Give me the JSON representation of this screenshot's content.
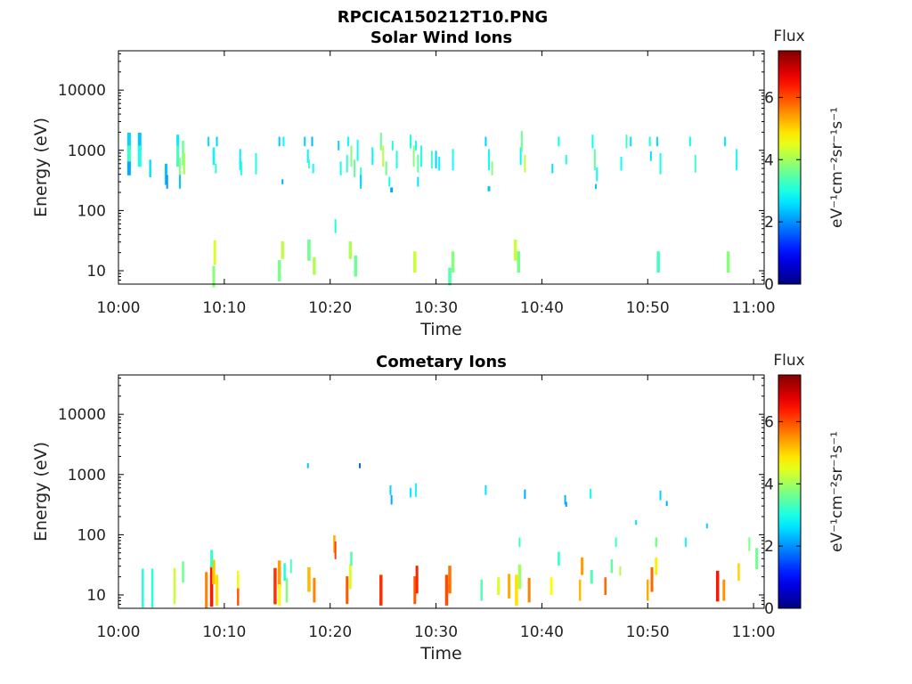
{
  "figure_title": "RPCICA150212T10.PNG",
  "chart_data": [
    {
      "type": "heatmap",
      "title": "Solar Wind Ions",
      "xlabel": "Time",
      "ylabel": "Energy (eV)",
      "x_ticks": [
        "10:00",
        "10:10",
        "10:20",
        "10:30",
        "10:40",
        "10:50",
        "11:00"
      ],
      "xlim_minutes": [
        0,
        61
      ],
      "y_scale": "log",
      "ylim": [
        6,
        45000
      ],
      "y_ticks": [
        "10",
        "100",
        "1000",
        "10000"
      ],
      "colorbar": {
        "title": "Flux",
        "label": "eV⁻¹cm⁻²sr⁻¹s⁻¹",
        "ticks": [
          "0",
          "2",
          "4",
          "6"
        ],
        "range": [
          0,
          7.5
        ],
        "colormap": "jet"
      },
      "cells": [
        [
          1.0,
          1400,
          4.0,
          2.5,
          1.4
        ],
        [
          1.0,
          800,
          4.0,
          3.2,
          1.5
        ],
        [
          1.0,
          500,
          4.0,
          2.2,
          1.3
        ],
        [
          2.0,
          1400,
          4.0,
          2.4,
          1.4
        ],
        [
          2.0,
          800,
          4.0,
          3.0,
          1.5
        ],
        [
          3.0,
          500,
          2.4,
          2.6,
          1.4
        ],
        [
          4.5,
          400,
          3.0,
          2.4,
          1.5
        ],
        [
          4.6,
          300,
          2.0,
          2.0,
          1.3
        ],
        [
          5.6,
          1400,
          3.0,
          2.7,
          1.3
        ],
        [
          5.6,
          800,
          3.0,
          3.3,
          1.5
        ],
        [
          5.8,
          500,
          2.0,
          3.8,
          1.5
        ],
        [
          5.8,
          300,
          2.0,
          2.4,
          1.3
        ],
        [
          6.1,
          900,
          2.5,
          3.6,
          1.6
        ],
        [
          6.2,
          600,
          2.5,
          4.0,
          1.5
        ],
        [
          8.5,
          1400,
          2.0,
          2.6,
          1.2
        ],
        [
          9.0,
          800,
          2.5,
          2.8,
          1.4
        ],
        [
          9.2,
          500,
          2.0,
          3.1,
          1.2
        ],
        [
          9.3,
          1400,
          2.0,
          2.5,
          1.2
        ],
        [
          9.0,
          8,
          3.0,
          3.8,
          1.5
        ],
        [
          9.1,
          20,
          3.0,
          4.4,
          1.6
        ],
        [
          11.5,
          700,
          2.0,
          2.7,
          1.5
        ],
        [
          11.6,
          500,
          2.0,
          3.0,
          1.3
        ],
        [
          13.0,
          600,
          2.0,
          3.0,
          1.5
        ],
        [
          15.2,
          1400,
          2.0,
          2.4,
          1.2
        ],
        [
          15.6,
          1400,
          2.0,
          2.8,
          1.2
        ],
        [
          15.5,
          300,
          2.0,
          2.2,
          1.1
        ],
        [
          15.2,
          10,
          3.5,
          3.7,
          1.5
        ],
        [
          15.5,
          22,
          3.5,
          4.2,
          1.4
        ],
        [
          17.6,
          1400,
          2.0,
          2.5,
          1.2
        ],
        [
          17.9,
          800,
          2.0,
          2.8,
          1.3
        ],
        [
          18.0,
          600,
          2.0,
          3.3,
          1.2
        ],
        [
          18.3,
          1400,
          2.0,
          2.3,
          1.2
        ],
        [
          18.4,
          500,
          2.0,
          2.9,
          1.2
        ],
        [
          18.0,
          22,
          3.5,
          3.6,
          1.5
        ],
        [
          18.5,
          12,
          3.5,
          4.1,
          1.4
        ],
        [
          20.5,
          55,
          2.0,
          3.0,
          1.3
        ],
        [
          20.8,
          1200,
          2.0,
          2.5,
          1.2
        ],
        [
          21.0,
          500,
          2.0,
          2.9,
          1.3
        ],
        [
          21.6,
          600,
          2.0,
          3.2,
          1.4
        ],
        [
          21.7,
          1400,
          2.0,
          2.8,
          1.2
        ],
        [
          22.0,
          800,
          2.0,
          3.8,
          1.5
        ],
        [
          22.3,
          500,
          2.0,
          3.5,
          1.4
        ],
        [
          22.6,
          1000,
          2.0,
          3.0,
          1.5
        ],
        [
          22.9,
          400,
          2.0,
          3.3,
          1.3
        ],
        [
          22.9,
          300,
          2.0,
          2.5,
          1.3
        ],
        [
          21.9,
          22,
          3.5,
          4.1,
          1.4
        ],
        [
          22.4,
          12,
          3.5,
          3.6,
          1.5
        ],
        [
          24.0,
          800,
          2.0,
          2.8,
          1.4
        ],
        [
          24.8,
          1400,
          2.0,
          3.6,
          1.4
        ],
        [
          25.0,
          800,
          2.0,
          4.2,
          1.5
        ],
        [
          25.3,
          500,
          2.0,
          3.6,
          1.3
        ],
        [
          25.6,
          300,
          2.0,
          2.9,
          1.2
        ],
        [
          25.9,
          1200,
          2.0,
          3.0,
          1.2
        ],
        [
          25.8,
          220,
          3.0,
          2.2,
          1.1
        ],
        [
          26.3,
          700,
          2.0,
          3.0,
          1.4
        ],
        [
          27.6,
          1400,
          2.0,
          3.0,
          1.3
        ],
        [
          27.9,
          800,
          2.0,
          3.8,
          1.5
        ],
        [
          28.1,
          1200,
          2.0,
          2.9,
          1.2
        ],
        [
          28.3,
          600,
          2.0,
          3.5,
          1.4
        ],
        [
          28.6,
          800,
          2.0,
          3.0,
          1.5
        ],
        [
          28.3,
          300,
          2.0,
          2.6,
          1.2
        ],
        [
          28.0,
          14,
          3.5,
          4.3,
          1.5
        ],
        [
          29.6,
          700,
          2.0,
          3.2,
          1.4
        ],
        [
          30.0,
          700,
          2.0,
          2.5,
          1.4
        ],
        [
          30.3,
          600,
          2.0,
          2.8,
          1.3
        ],
        [
          31.6,
          700,
          2.0,
          2.9,
          1.5
        ],
        [
          31.6,
          14,
          3.5,
          3.8,
          1.5
        ],
        [
          31.3,
          8,
          3.5,
          3.4,
          1.4
        ],
        [
          34.7,
          1400,
          2.0,
          2.5,
          1.2
        ],
        [
          35.0,
          700,
          2.0,
          2.9,
          1.5
        ],
        [
          35.3,
          500,
          2.0,
          3.8,
          1.3
        ],
        [
          35.0,
          230,
          3.0,
          2.4,
          1.1
        ],
        [
          37.5,
          22,
          3.5,
          4.3,
          1.5
        ],
        [
          37.8,
          14,
          3.5,
          3.7,
          1.5
        ],
        [
          38.0,
          800,
          2.0,
          2.8,
          1.4
        ],
        [
          38.1,
          1400,
          2.0,
          3.6,
          1.5
        ],
        [
          38.4,
          600,
          2.0,
          4.2,
          1.4
        ],
        [
          41.0,
          500,
          2.0,
          2.6,
          1.2
        ],
        [
          41.6,
          1400,
          2.0,
          2.8,
          1.2
        ],
        [
          42.3,
          700,
          2.0,
          3.0,
          1.2
        ],
        [
          44.8,
          1400,
          2.0,
          2.9,
          1.3
        ],
        [
          45.0,
          700,
          2.0,
          3.5,
          1.5
        ],
        [
          45.2,
          400,
          2.0,
          2.9,
          1.3
        ],
        [
          45.1,
          250,
          2.0,
          2.4,
          1.1
        ],
        [
          47.5,
          600,
          2.0,
          2.9,
          1.3
        ],
        [
          48.0,
          1400,
          2.0,
          3.3,
          1.3
        ],
        [
          48.4,
          1400,
          2.0,
          2.6,
          1.2
        ],
        [
          50.2,
          1400,
          2.0,
          3.0,
          1.2
        ],
        [
          50.3,
          800,
          2.0,
          2.6,
          1.2
        ],
        [
          50.9,
          1400,
          2.0,
          2.6,
          1.2
        ],
        [
          51.2,
          600,
          2.0,
          3.0,
          1.5
        ],
        [
          51.0,
          14,
          3.5,
          3.3,
          1.5
        ],
        [
          54.0,
          1400,
          2.0,
          2.8,
          1.2
        ],
        [
          54.5,
          600,
          2.0,
          3.3,
          1.4
        ],
        [
          57.3,
          1400,
          2.0,
          2.7,
          1.2
        ],
        [
          57.6,
          14,
          3.5,
          3.8,
          1.5
        ],
        [
          58.4,
          700,
          2.0,
          2.9,
          1.5
        ]
      ]
    },
    {
      "type": "heatmap",
      "title": "Cometary Ions",
      "xlabel": "Time",
      "ylabel": "Energy (eV)",
      "x_ticks": [
        "10:00",
        "10:10",
        "10:20",
        "10:30",
        "10:40",
        "10:50",
        "11:00"
      ],
      "xlim_minutes": [
        0,
        61
      ],
      "y_scale": "log",
      "ylim": [
        6,
        45000
      ],
      "y_ticks": [
        "10",
        "100",
        "1000",
        "10000"
      ],
      "colorbar": {
        "title": "Flux",
        "label": "eV⁻¹cm⁻²sr⁻¹s⁻¹",
        "ticks": [
          "0",
          "2",
          "4",
          "6"
        ],
        "range": [
          0,
          7.5
        ],
        "colormap": "jet"
      },
      "cells": [
        [
          2.3,
          13,
          2.5,
          3.1,
          2.1
        ],
        [
          3.2,
          13,
          2.5,
          3.1,
          2.1
        ],
        [
          5.3,
          14,
          2.5,
          4.3,
          2.0
        ],
        [
          6.1,
          24,
          2.5,
          3.6,
          1.5
        ],
        [
          8.3,
          12,
          3.0,
          5.6,
          2.0
        ],
        [
          8.8,
          14,
          3.5,
          6.4,
          2.2
        ],
        [
          9.0,
          24,
          3.5,
          5.1,
          1.6
        ],
        [
          9.3,
          12,
          3.0,
          4.9,
          1.8
        ],
        [
          8.8,
          40,
          3.0,
          3.2,
          1.4
        ],
        [
          11.3,
          12,
          2.5,
          5.9,
          1.8
        ],
        [
          11.3,
          18,
          2.5,
          4.6,
          1.4
        ],
        [
          14.8,
          14,
          3.5,
          6.2,
          2.0
        ],
        [
          15.2,
          22,
          3.5,
          5.4,
          1.7
        ],
        [
          15.2,
          10,
          3.0,
          4.6,
          1.5
        ],
        [
          15.9,
          12,
          2.5,
          3.8,
          1.6
        ],
        [
          15.7,
          24,
          2.5,
          3.0,
          1.4
        ],
        [
          16.3,
          30,
          2.0,
          3.3,
          1.3
        ],
        [
          17.9,
          1400,
          2.0,
          2.4,
          1.1
        ],
        [
          18.0,
          18,
          3.5,
          5.2,
          1.6
        ],
        [
          18.5,
          12,
          3.0,
          5.6,
          1.6
        ],
        [
          20.4,
          70,
          2.5,
          5.3,
          1.4
        ],
        [
          20.5,
          55,
          2.0,
          6.1,
          1.4
        ],
        [
          21.6,
          12,
          3.0,
          5.9,
          1.7
        ],
        [
          21.9,
          20,
          3.0,
          4.4,
          1.6
        ],
        [
          22.0,
          40,
          2.5,
          3.4,
          1.3
        ],
        [
          22.8,
          1400,
          2.0,
          1.7,
          1.1
        ],
        [
          24.8,
          12,
          3.5,
          6.2,
          1.8
        ],
        [
          25.7,
          550,
          2.0,
          2.5,
          1.2
        ],
        [
          25.8,
          380,
          2.0,
          2.2,
          1.2
        ],
        [
          27.6,
          500,
          2.0,
          2.7,
          1.2
        ],
        [
          28.1,
          550,
          2.0,
          2.9,
          1.3
        ],
        [
          28.0,
          12,
          3.0,
          5.9,
          1.7
        ],
        [
          28.2,
          18,
          3.0,
          6.3,
          1.7
        ],
        [
          31.0,
          12,
          3.5,
          6.0,
          1.8
        ],
        [
          31.3,
          18,
          3.5,
          5.7,
          1.7
        ],
        [
          34.7,
          550,
          2.0,
          2.6,
          1.2
        ],
        [
          34.3,
          12,
          2.5,
          3.4,
          1.5
        ],
        [
          35.9,
          14,
          3.0,
          4.4,
          1.4
        ],
        [
          36.9,
          14,
          3.0,
          5.3,
          1.6
        ],
        [
          37.6,
          12,
          3.5,
          4.9,
          1.8
        ],
        [
          37.9,
          20,
          3.5,
          4.0,
          1.6
        ],
        [
          37.9,
          75,
          2.0,
          3.2,
          1.2
        ],
        [
          38.4,
          470,
          2.0,
          2.2,
          1.2
        ],
        [
          38.8,
          12,
          3.0,
          5.6,
          1.6
        ],
        [
          40.9,
          14,
          3.0,
          4.7,
          1.4
        ],
        [
          41.6,
          40,
          2.5,
          3.1,
          1.3
        ],
        [
          42.2,
          380,
          2.0,
          2.3,
          1.2
        ],
        [
          42.3,
          320,
          2.0,
          2.1,
          1.1
        ],
        [
          43.6,
          12,
          2.5,
          5.2,
          1.5
        ],
        [
          43.8,
          30,
          3.0,
          5.4,
          1.4
        ],
        [
          44.6,
          480,
          2.0,
          2.9,
          1.2
        ],
        [
          44.7,
          20,
          3.0,
          3.4,
          1.3
        ],
        [
          46.0,
          14,
          2.5,
          5.8,
          1.4
        ],
        [
          46.6,
          30,
          2.5,
          3.5,
          1.3
        ],
        [
          47.0,
          75,
          2.0,
          3.3,
          1.2
        ],
        [
          47.4,
          25,
          2.0,
          4.1,
          1.2
        ],
        [
          48.9,
          160,
          2.0,
          2.6,
          1.1
        ],
        [
          50.0,
          12,
          2.5,
          5.3,
          1.5
        ],
        [
          50.4,
          18,
          3.0,
          5.8,
          1.6
        ],
        [
          50.8,
          30,
          3.0,
          4.8,
          1.4
        ],
        [
          50.8,
          75,
          2.5,
          3.7,
          1.2
        ],
        [
          51.2,
          450,
          2.0,
          2.5,
          1.2
        ],
        [
          51.8,
          330,
          2.0,
          2.2,
          1.1
        ],
        [
          53.6,
          75,
          2.0,
          2.9,
          1.2
        ],
        [
          55.6,
          140,
          2.0,
          2.5,
          1.1
        ],
        [
          56.6,
          14,
          3.5,
          6.4,
          1.8
        ],
        [
          57.2,
          12,
          3.0,
          5.5,
          1.5
        ],
        [
          58.6,
          24,
          2.5,
          5.0,
          1.4
        ],
        [
          59.6,
          70,
          2.0,
          3.7,
          1.3
        ],
        [
          60.3,
          40,
          3.0,
          3.6,
          1.5
        ]
      ]
    }
  ]
}
